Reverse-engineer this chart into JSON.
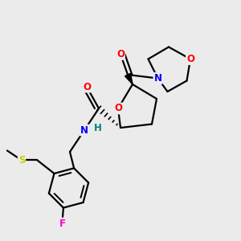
{
  "background_color": "#ebebeb",
  "atoms": {
    "colors": {
      "C": "#000000",
      "O": "#ff0000",
      "N": "#0000ff",
      "F": "#ff00cc",
      "S": "#cccc00",
      "H": "#008080"
    }
  },
  "bond_color": "#000000",
  "bond_width": 1.6,
  "font_size": 8.5
}
